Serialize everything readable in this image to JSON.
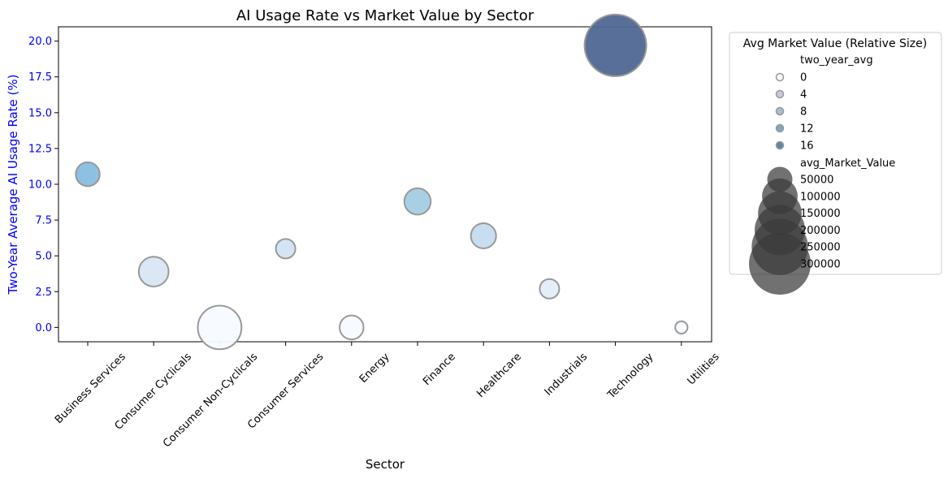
{
  "chart_data": {
    "type": "scatter",
    "title": "AI Usage Rate vs Market Value by Sector",
    "xlabel": "Sector",
    "ylabel": "Two-Year Average AI Usage Rate (%)",
    "categories": [
      "Business Services",
      "Consumer Cyclicals",
      "Consumer Non-Cyclicals",
      "Consumer Services",
      "Energy",
      "Finance",
      "Healthcare",
      "Industrials",
      "Technology",
      "Utilities"
    ],
    "y_ticks": [
      0.0,
      2.5,
      5.0,
      7.5,
      10.0,
      12.5,
      15.0,
      17.5,
      20.0
    ],
    "y_tick_labels": [
      "0.0",
      "2.5",
      "5.0",
      "7.5",
      "10.0",
      "12.5",
      "15.0",
      "17.5",
      "20.0"
    ],
    "ylim": [
      -1.0,
      21.0
    ],
    "grid": false,
    "colors": {
      "ylabel": "#0000ff",
      "ytick": "#0000ff",
      "edge": "#999999",
      "legend_marker": "#3a3a3a"
    },
    "points": [
      {
        "category": "Business Services",
        "y": 10.7,
        "avg_Market_Value": 45000,
        "color": "#88bde0"
      },
      {
        "category": "Consumer Cyclicals",
        "y": 3.9,
        "avg_Market_Value": 70000,
        "color": "#dae6f4"
      },
      {
        "category": "Consumer Non-Cyclicals",
        "y": 0.0,
        "avg_Market_Value": 150000,
        "color": "#f7fbff"
      },
      {
        "category": "Consumer Services",
        "y": 5.5,
        "avg_Market_Value": 30000,
        "color": "#d2e3f3"
      },
      {
        "category": "Energy",
        "y": 0.0,
        "avg_Market_Value": 45000,
        "color": "#f7fbff"
      },
      {
        "category": "Finance",
        "y": 8.8,
        "avg_Market_Value": 55000,
        "color": "#a4cce3"
      },
      {
        "category": "Healthcare",
        "y": 6.4,
        "avg_Market_Value": 50000,
        "color": "#c6dbef"
      },
      {
        "category": "Industrials",
        "y": 2.7,
        "avg_Market_Value": 30000,
        "color": "#e1edf8"
      },
      {
        "category": "Technology",
        "y": 19.7,
        "avg_Market_Value": 300000,
        "color": "#4f6893"
      },
      {
        "category": "Utilities",
        "y": 0.0,
        "avg_Market_Value": 12000,
        "color": "#f7fbff"
      }
    ],
    "legend": {
      "title": "Avg Market Value (Relative Size)",
      "placement": "outside-upper-right",
      "hue_title": "two_year_avg",
      "hue_entries": [
        {
          "label": "0",
          "color": "#f7fbff"
        },
        {
          "label": "4",
          "color": "#c9c9dc"
        },
        {
          "label": "8",
          "color": "#a7bdd6"
        },
        {
          "label": "12",
          "color": "#7ea7c4"
        },
        {
          "label": "16",
          "color": "#5f86ab"
        }
      ],
      "size_title": "avg_Market_Value",
      "size_entries": [
        {
          "label": "50000",
          "value": 50000
        },
        {
          "label": "100000",
          "value": 100000
        },
        {
          "label": "150000",
          "value": 150000
        },
        {
          "label": "200000",
          "value": 200000
        },
        {
          "label": "250000",
          "value": 250000
        },
        {
          "label": "300000",
          "value": 300000
        }
      ]
    }
  }
}
